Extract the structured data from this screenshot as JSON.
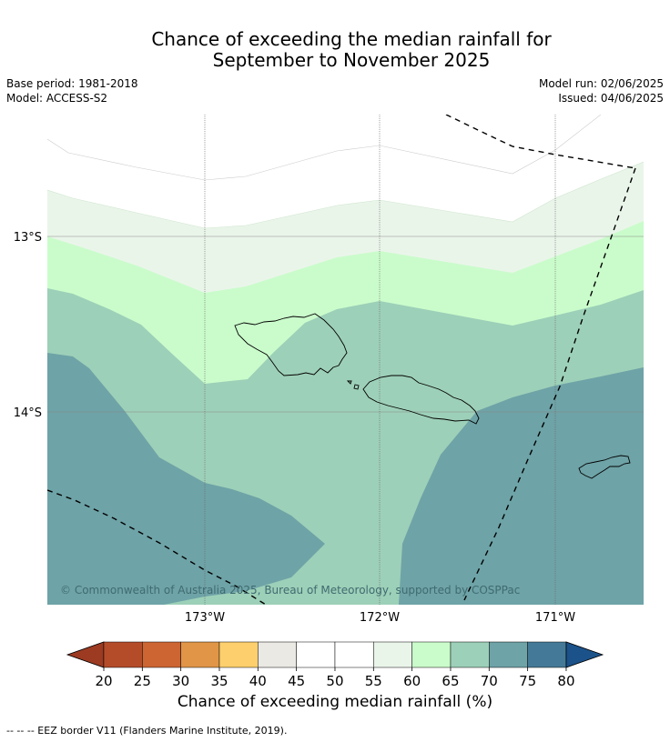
{
  "title_line1": "Chance of exceeding the median rainfall for",
  "title_line2": "September to November 2025",
  "meta": {
    "base_period": "Base period: 1981-2018",
    "model": "Model: ACCESS-S2",
    "model_run": "Model run: 02/06/2025",
    "issued": "Issued: 04/06/2025"
  },
  "map": {
    "lat_labels": [
      "13°S",
      "14°S"
    ],
    "lon_labels": [
      "173°W",
      "172°W",
      "171°W"
    ],
    "copyright": "© Commonwealth of Australia 2025, Bureau of Meteorology, supported by COSPPac"
  },
  "colorbar": {
    "ticks": [
      "20",
      "25",
      "30",
      "35",
      "40",
      "45",
      "50",
      "55",
      "60",
      "65",
      "70",
      "75",
      "80"
    ],
    "colors": [
      "#9c3a22",
      "#b44c2a",
      "#cc6532",
      "#e09547",
      "#fdcf6d",
      "#eae9e4",
      "#ffffff",
      "#ffffff",
      "#eaf5ea",
      "#cafccb",
      "#9dd0b8",
      "#6ea3a7",
      "#447a97",
      "#1b5289"
    ],
    "label": "Chance of exceeding median rainfall (%)"
  },
  "footnote": "--  --  -- EEZ border V11 (Flanders Marine Institute, 2019)."
}
